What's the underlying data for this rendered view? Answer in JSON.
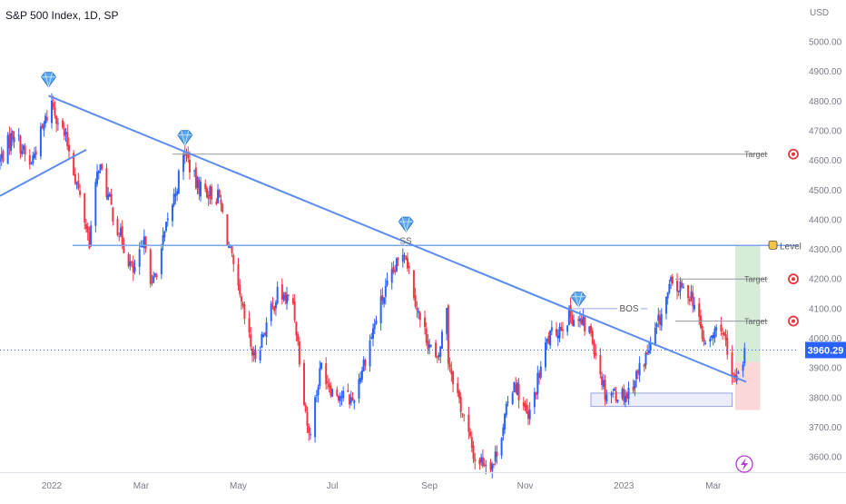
{
  "header": {
    "symbol": "S&P 500 Index, 1D, SP",
    "currency": "USD"
  },
  "colors": {
    "up": "#2962ff",
    "down": "#f23645",
    "trendline": "#5b8def",
    "level_line": "#7ea3f0",
    "target_line": "#9598a1",
    "target_zone": "#c8e6c9",
    "stop_zone": "#f9c9cc",
    "price_badge": "#2962ff",
    "demand_box": "#c5cbf2"
  },
  "chart_data": {
    "type": "candlestick",
    "title": "S&P 500 Index, 1D, SP",
    "ylabel": "USD",
    "ylim": [
      3545,
      5080
    ],
    "y_ticks": [
      "5000.00",
      "4900.00",
      "4800.00",
      "4700.00",
      "4600.00",
      "4500.00",
      "4400.00",
      "4300.00",
      "4200.00",
      "4100.00",
      "4000.00",
      "3900.00",
      "3800.00",
      "3700.00",
      "3600.00"
    ],
    "x_ticks": [
      "2022",
      "Mar",
      "May",
      "Jul",
      "Sep",
      "Nov",
      "2023",
      "Mar"
    ],
    "x_tick_dates": [
      "2022-01-03",
      "2022-03-01",
      "2022-05-02",
      "2022-07-01",
      "2022-09-01",
      "2022-11-01",
      "2023-01-03",
      "2023-03-01"
    ],
    "date_range": [
      "2021-12-01",
      "2023-03-22"
    ],
    "last_price": "3960.29",
    "path_anchors": [
      [
        "2021-12-01",
        4600
      ],
      [
        "2021-12-10",
        4700
      ],
      [
        "2021-12-20",
        4580
      ],
      [
        "2022-01-03",
        4796
      ],
      [
        "2022-01-14",
        4640
      ],
      [
        "2022-01-27",
        4330
      ],
      [
        "2022-02-02",
        4590
      ],
      [
        "2022-02-11",
        4420
      ],
      [
        "2022-02-24",
        4220
      ],
      [
        "2022-03-04",
        4330
      ],
      [
        "2022-03-08",
        4170
      ],
      [
        "2022-03-29",
        4630
      ],
      [
        "2022-04-05",
        4520
      ],
      [
        "2022-04-20",
        4470
      ],
      [
        "2022-05-02",
        4150
      ],
      [
        "2022-05-12",
        3930
      ],
      [
        "2022-05-27",
        4150
      ],
      [
        "2022-06-06",
        4120
      ],
      [
        "2022-06-16",
        3670
      ],
      [
        "2022-06-24",
        3910
      ],
      [
        "2022-07-01",
        3825
      ],
      [
        "2022-07-14",
        3790
      ],
      [
        "2022-08-01",
        4120
      ],
      [
        "2022-08-16",
        4305
      ],
      [
        "2022-08-26",
        4060
      ],
      [
        "2022-09-06",
        3910
      ],
      [
        "2022-09-12",
        4110
      ],
      [
        "2022-09-13",
        3930
      ],
      [
        "2022-09-30",
        3590
      ],
      [
        "2022-10-12",
        3580
      ],
      [
        "2022-10-25",
        3860
      ],
      [
        "2022-11-03",
        3720
      ],
      [
        "2022-11-15",
        3990
      ],
      [
        "2022-11-30",
        4080
      ],
      [
        "2022-12-13",
        4020
      ],
      [
        "2022-12-22",
        3820
      ],
      [
        "2023-01-05",
        3810
      ],
      [
        "2023-01-20",
        3970
      ],
      [
        "2023-02-02",
        4180
      ],
      [
        "2023-02-15",
        4150
      ],
      [
        "2023-02-24",
        3970
      ],
      [
        "2023-03-06",
        4050
      ],
      [
        "2023-03-13",
        3850
      ],
      [
        "2023-03-22",
        3960
      ]
    ],
    "trendlines": [
      {
        "from": [
          "2022-01-01",
          4818
        ],
        "to": [
          "2023-03-22",
          3853
        ]
      },
      {
        "from": [
          "2021-12-01",
          4480
        ],
        "to": [
          "2022-01-25",
          4636
        ]
      }
    ],
    "level": {
      "value": 4313,
      "label": "Level"
    },
    "targets": [
      {
        "value": 4621,
        "label": "Target"
      },
      {
        "value": 4200,
        "label": "Target"
      },
      {
        "value": 4058,
        "label": "Target"
      }
    ],
    "risk_zone": {
      "from_date": "2023-03-15",
      "to_date": "2023-03-31",
      "target": 4313,
      "entry": 3920,
      "stop": 3758
    },
    "demand_zone": {
      "from_date": "2022-12-13",
      "to_date": "2023-03-13",
      "top": 3815,
      "bottom": 3770
    },
    "bos": {
      "label": "BOS",
      "value": 4100,
      "from_date": "2022-12-01",
      "to_date": "2023-01-18"
    },
    "ss": {
      "label": "SS",
      "date": "2022-08-18",
      "value": 4328
    },
    "markers": [
      {
        "date": "2022-01-01",
        "value": 4872
      },
      {
        "date": "2022-03-29",
        "value": 4676
      },
      {
        "date": "2022-08-17",
        "value": 4384
      },
      {
        "date": "2022-12-05",
        "value": 4131
      }
    ]
  }
}
